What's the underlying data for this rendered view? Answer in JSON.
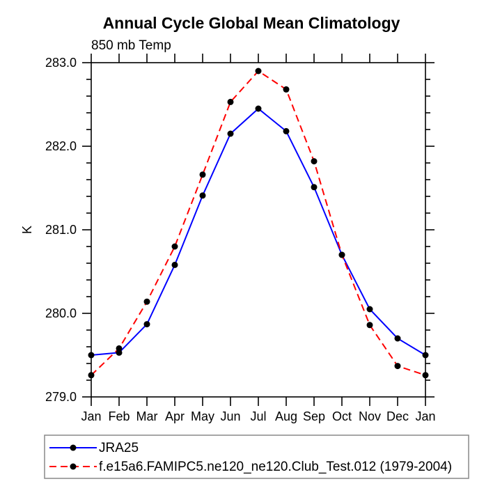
{
  "chart_data": {
    "type": "line",
    "title": "Annual Cycle Global Mean Climatology",
    "subtitle": "850 mb Temp",
    "ylabel": "K",
    "categories": [
      "Jan",
      "Feb",
      "Mar",
      "Apr",
      "May",
      "Jun",
      "Jul",
      "Aug",
      "Sep",
      "Oct",
      "Nov",
      "Dec",
      "Jan"
    ],
    "ylim": [
      279.0,
      283.0
    ],
    "ytick_major_values": [
      279.0,
      280.0,
      281.0,
      282.0,
      283.0
    ],
    "ytick_major_labels": [
      "279.0",
      "280.0",
      "281.0",
      "282.0",
      "283.0"
    ],
    "ytick_minor_step": 0.2,
    "grid": false,
    "legend_position": "bottom-left",
    "series": [
      {
        "name": "JRA25",
        "color": "#0000ff",
        "line_style": "solid",
        "marker": "circle",
        "marker_color": "#000000",
        "values": [
          279.5,
          279.53,
          279.87,
          280.58,
          281.41,
          282.15,
          282.45,
          282.18,
          281.51,
          280.7,
          280.05,
          279.7,
          279.5
        ]
      },
      {
        "name": "f.e15a6.FAMIPC5.ne120_ne120.Club_Test.012 (1979-2004)",
        "color": "#ff0000",
        "line_style": "dashed",
        "marker": "circle",
        "marker_color": "#000000",
        "values": [
          279.26,
          279.58,
          280.14,
          280.8,
          281.66,
          282.53,
          282.9,
          282.68,
          281.82,
          280.7,
          279.86,
          279.37,
          279.26
        ]
      }
    ]
  }
}
